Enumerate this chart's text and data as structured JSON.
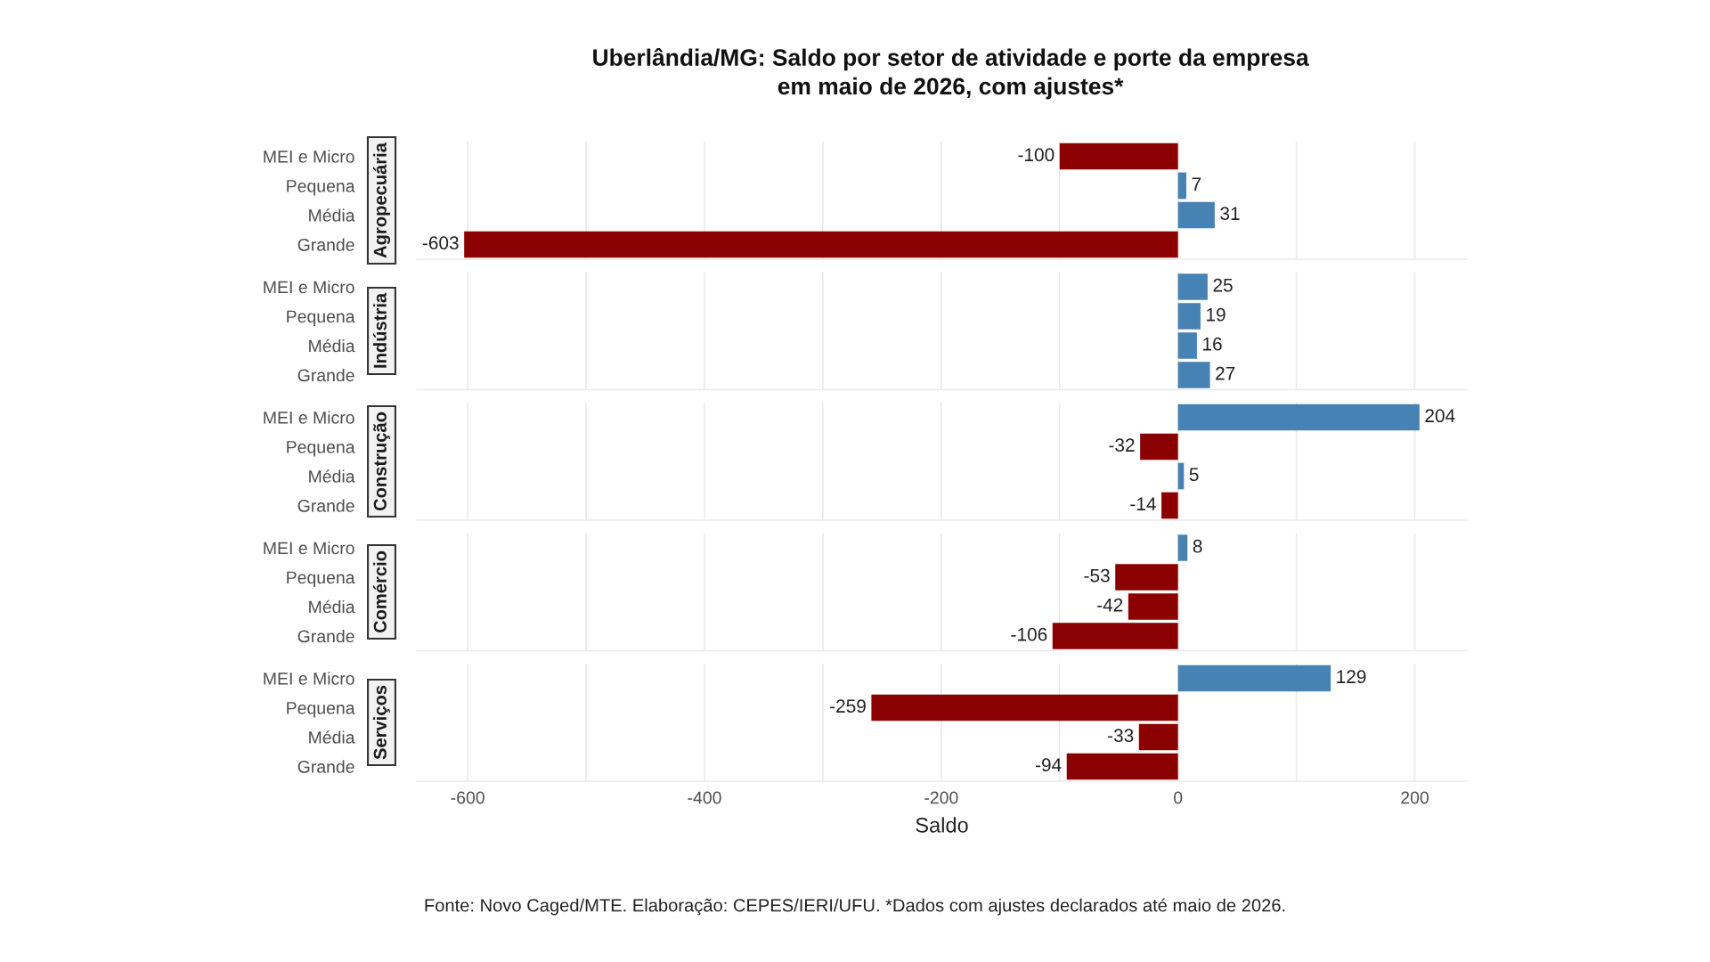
{
  "chart_data": [
    {
      "type": "bar",
      "orientation": "horizontal",
      "title": "Uberlândia/MG: Saldo por setor de atividade e porte da empresa\nem maio de 2026, com ajustes*",
      "ylabel": "Agropecuária",
      "categories": [
        "MEI e Micro",
        "Pequena",
        "Média",
        "Grande"
      ],
      "values": [
        -100,
        7,
        31,
        -603
      ],
      "colors": [
        "#8b0000",
        "#4682b4",
        "#4682b4",
        "#8b0000"
      ],
      "data_labels": true,
      "xlim": [
        -643,
        244
      ],
      "xticks": [
        -600,
        {
          "value": -500,
          "label": null
        },
        -400,
        {
          "value": -300,
          "label": null
        },
        -200,
        {
          "value": -100,
          "label": null
        },
        0,
        {
          "value": 100,
          "label": null
        },
        200
      ],
      "grid": "x",
      "tick_labels": "y"
    },
    {
      "type": "bar",
      "orientation": "horizontal",
      "ylabel": "Indústria",
      "categories": [
        "MEI e Micro",
        "Pequena",
        "Média",
        "Grande"
      ],
      "values": [
        25,
        19,
        16,
        27
      ],
      "colors": [
        "#4682b4",
        "#4682b4",
        "#4682b4",
        "#4682b4"
      ],
      "data_labels": true,
      "xlim": [
        -643,
        244
      ],
      "xticks": [
        -600,
        {
          "value": -500,
          "label": null
        },
        -400,
        {
          "value": -300,
          "label": null
        },
        -200,
        {
          "value": -100,
          "label": null
        },
        0,
        {
          "value": 100,
          "label": null
        },
        200
      ],
      "grid": "x",
      "tick_labels": "y"
    },
    {
      "type": "bar",
      "orientation": "horizontal",
      "ylabel": "Construção",
      "categories": [
        "MEI e Micro",
        "Pequena",
        "Média",
        "Grande"
      ],
      "values": [
        204,
        -32,
        5,
        -14
      ],
      "colors": [
        "#4682b4",
        "#8b0000",
        "#4682b4",
        "#8b0000"
      ],
      "data_labels": true,
      "xlim": [
        -643,
        244
      ],
      "xticks": [
        -600,
        {
          "value": -500,
          "label": null
        },
        -400,
        {
          "value": -300,
          "label": null
        },
        -200,
        {
          "value": -100,
          "label": null
        },
        0,
        {
          "value": 100,
          "label": null
        },
        200
      ],
      "grid": "x",
      "tick_labels": "y"
    },
    {
      "type": "bar",
      "orientation": "horizontal",
      "ylabel": "Comércio",
      "categories": [
        "MEI e Micro",
        "Pequena",
        "Média",
        "Grande"
      ],
      "values": [
        8,
        -53,
        -42,
        -106
      ],
      "colors": [
        "#4682b4",
        "#8b0000",
        "#8b0000",
        "#8b0000"
      ],
      "data_labels": true,
      "xlim": [
        -643,
        244
      ],
      "xticks": [
        -600,
        {
          "value": -500,
          "label": null
        },
        -400,
        {
          "value": -300,
          "label": null
        },
        -200,
        {
          "value": -100,
          "label": null
        },
        0,
        {
          "value": 100,
          "label": null
        },
        200
      ],
      "grid": "x",
      "tick_labels": "y"
    },
    {
      "type": "bar",
      "orientation": "horizontal",
      "ylabel": "Serviços",
      "xlabel": "Saldo",
      "categories": [
        "MEI e Micro",
        "Pequena",
        "Média",
        "Grande"
      ],
      "values": [
        129,
        -259,
        -33,
        -94
      ],
      "colors": [
        "#4682b4",
        "#8b0000",
        "#8b0000",
        "#8b0000"
      ],
      "data_labels": true,
      "xlim": [
        -643,
        244
      ],
      "xticks": [
        -600,
        {
          "value": -500,
          "label": null
        },
        -400,
        {
          "value": -300,
          "label": null
        },
        -200,
        {
          "value": -100,
          "label": null
        },
        0,
        {
          "value": 100,
          "label": null
        },
        200
      ],
      "grid": "x",
      "annotations": [
        "Fonte: Novo Caged/MTE. Elaboração: CEPES/IERI/UFU. *Dados com ajustes declarados até maio de 2026."
      ]
    }
  ]
}
